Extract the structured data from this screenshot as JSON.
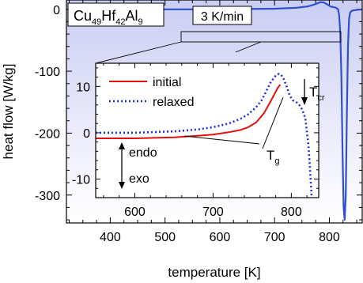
{
  "chart_data": [
    {
      "type": "line",
      "title": "Cu49Hf42Al9",
      "title_parts": [
        {
          "text": "Cu",
          "sub": "49"
        },
        {
          "text": "Hf",
          "sub": "42"
        },
        {
          "text": "Al",
          "sub": "9"
        }
      ],
      "xlabel": "temperature [K]",
      "ylabel": "heat flow [W/kg]",
      "xlim": [
        320,
        860
      ],
      "ylim": [
        -345,
        15
      ],
      "xticks": [
        400,
        500,
        600,
        700,
        800
      ],
      "yticks": [
        0,
        -100,
        -200,
        -300
      ],
      "annotation": "3 K/min",
      "series": [
        {
          "color": "#2f4fd0",
          "x": [
            320,
            400,
            500,
            600,
            650,
            700,
            740,
            760,
            770,
            778,
            784,
            790,
            796,
            800,
            804,
            808,
            812,
            816,
            818,
            820,
            822,
            824,
            826,
            828,
            830,
            832,
            834,
            836,
            838,
            842,
            850,
            860
          ],
          "y": [
            0,
            0,
            0,
            0,
            0.5,
            1,
            2.5,
            4.5,
            7,
            9.5,
            11.5,
            11,
            8,
            5.5,
            4,
            3.5,
            2.5,
            0,
            -10,
            -40,
            -110,
            -230,
            -320,
            -340,
            -300,
            -170,
            -60,
            -15,
            -5,
            -2,
            -1,
            0
          ]
        }
      ]
    },
    {
      "type": "line",
      "xlim": [
        550,
        835
      ],
      "ylim": [
        -14,
        15
      ],
      "xticks": [
        600,
        700,
        800
      ],
      "yticks": [
        10,
        0,
        -10
      ],
      "legend_position": "top-left",
      "annotations": [
        "endo",
        "exo",
        "Tg",
        "Tcr"
      ],
      "annotation_parts": {
        "tg": {
          "text": "T",
          "sub": "g"
        },
        "tcr": {
          "text": "T",
          "sub": "cr"
        }
      },
      "series": [
        {
          "name": "initial",
          "color": "#e01010",
          "style": "solid",
          "x": [
            550,
            600,
            650,
            700,
            720,
            735,
            745,
            755,
            765,
            772,
            778,
            782,
            785,
            786
          ],
          "y": [
            -1.2,
            -1.2,
            -1.0,
            -0.4,
            0.1,
            0.6,
            1.2,
            2.2,
            4.2,
            6.3,
            8.2,
            9.5,
            10.2,
            10.4
          ]
        },
        {
          "name": "relaxed",
          "color": "#2030d8",
          "style": "dotted",
          "x": [
            550,
            600,
            650,
            680,
            700,
            720,
            735,
            745,
            755,
            762,
            768,
            774,
            780,
            784,
            787,
            790,
            794,
            798,
            802,
            806,
            810,
            814,
            818,
            820,
            822,
            824,
            826
          ],
          "y": [
            0,
            0,
            0.3,
            0.7,
            1.2,
            2.0,
            3.0,
            4.0,
            5.5,
            7.0,
            9.0,
            11.0,
            12.3,
            12.7,
            12.5,
            11.7,
            10.0,
            8.0,
            7.0,
            6.7,
            6.0,
            5.0,
            3.0,
            0,
            -3,
            -8,
            -14
          ]
        }
      ]
    }
  ]
}
